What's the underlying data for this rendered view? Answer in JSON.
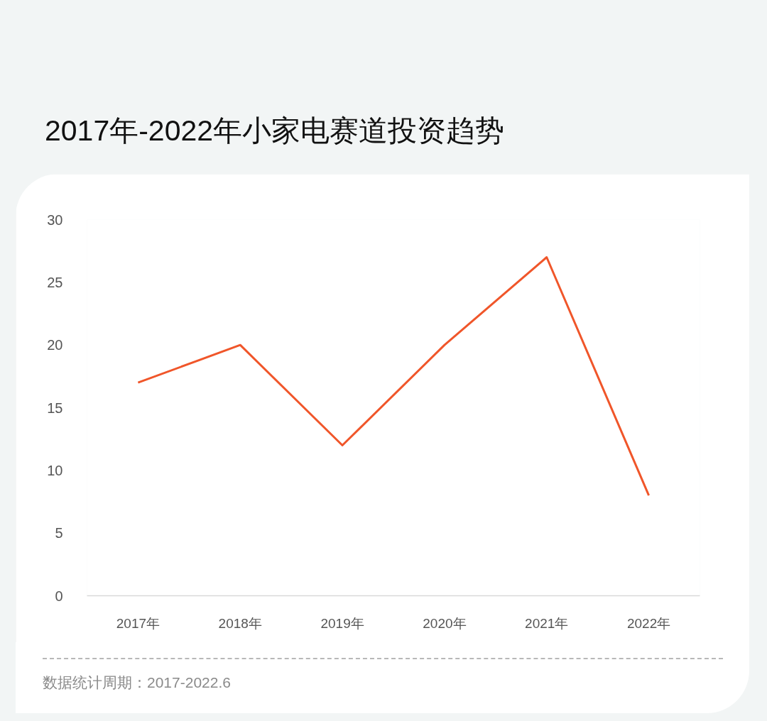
{
  "chart_data": {
    "type": "line",
    "title": "2017年-2022年小家电赛道投资趋势",
    "categories": [
      "2017年",
      "2018年",
      "2019年",
      "2020年",
      "2021年",
      "2022年"
    ],
    "series": [
      {
        "color": "#f0562a",
        "values": [
          17,
          20,
          12,
          20,
          27,
          8
        ]
      }
    ],
    "ylim": [
      0,
      30
    ],
    "yticks": [
      0,
      5,
      10,
      15,
      20,
      25,
      30
    ],
    "grid": false,
    "line_style": "solid",
    "annotations": [
      "数据统计周期：2017-2022.6"
    ]
  }
}
